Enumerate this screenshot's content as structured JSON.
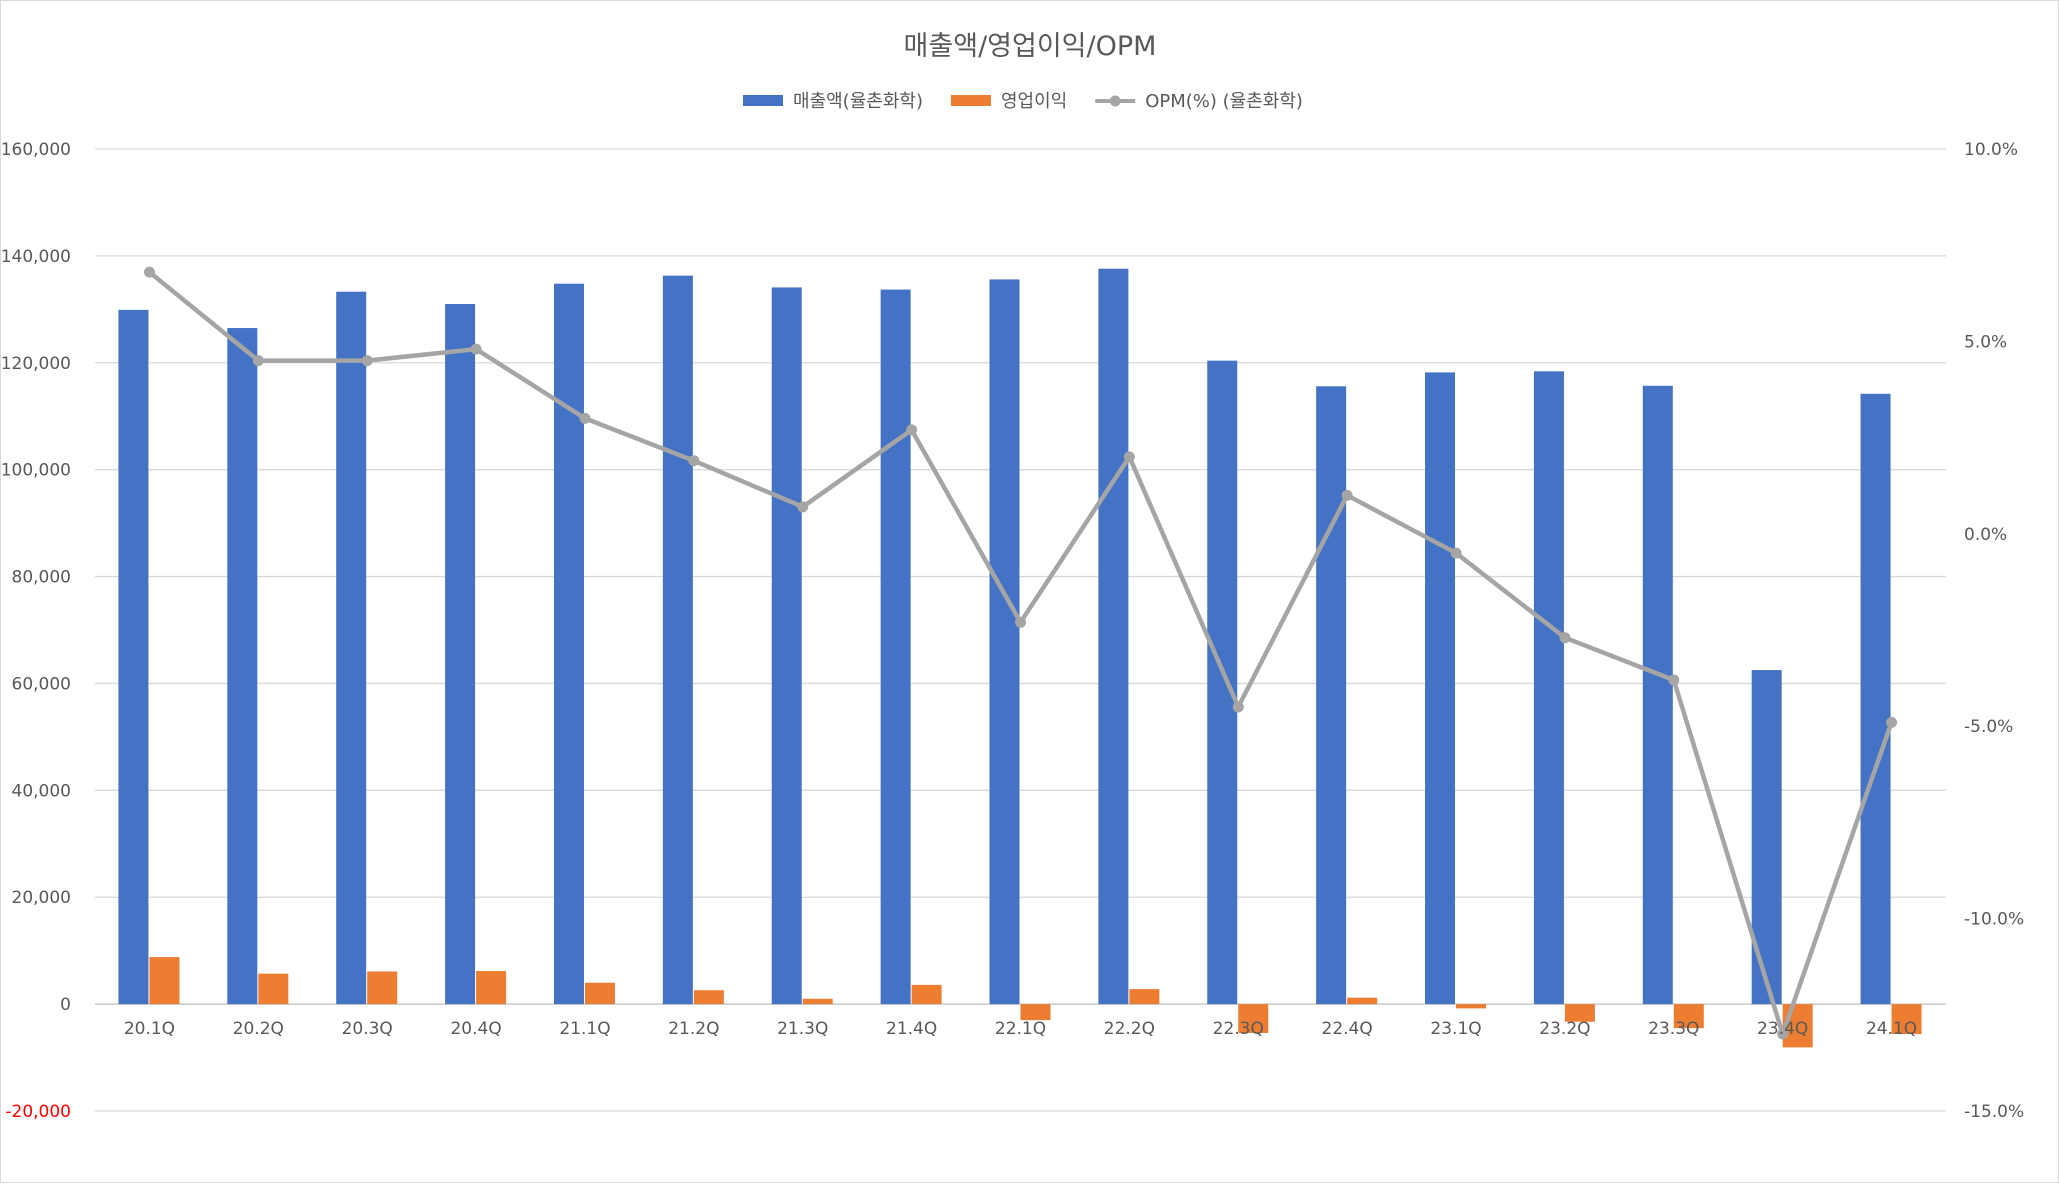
{
  "chart_data": {
    "type": "bar",
    "title": "매출액/영업이익/OPM",
    "categories": [
      "20.1Q",
      "20.2Q",
      "20.3Q",
      "20.4Q",
      "21.1Q",
      "21.2Q",
      "21.3Q",
      "21.4Q",
      "22.1Q",
      "22.2Q",
      "22.3Q",
      "22.4Q",
      "23.1Q",
      "23.2Q",
      "23.3Q",
      "23.4Q",
      "24.1Q"
    ],
    "series": [
      {
        "name": "매출액(율촌화학)",
        "type": "bar",
        "axis": "left",
        "color": "#4472c4",
        "values": [
          129900,
          126500,
          133300,
          131000,
          134800,
          136300,
          134100,
          133700,
          135600,
          137600,
          120400,
          115600,
          118200,
          118400,
          115700,
          62500,
          114200
        ]
      },
      {
        "name": "영업이익",
        "type": "bar",
        "axis": "left",
        "color": "#ed7d31",
        "values": [
          8800,
          5700,
          6100,
          6200,
          4000,
          2600,
          1000,
          3600,
          -3000,
          2800,
          -5400,
          1200,
          -800,
          -3300,
          -4500,
          -8100,
          -5600
        ]
      },
      {
        "name": "OPM(%) (율촌화학)",
        "type": "line",
        "axis": "right",
        "color": "#a5a5a5",
        "values": [
          6.8,
          4.5,
          4.5,
          4.8,
          3.0,
          1.9,
          0.7,
          2.7,
          -2.3,
          2.0,
          -4.5,
          1.0,
          -0.5,
          -2.7,
          -3.8,
          -13.0,
          -4.9
        ]
      }
    ],
    "y_left": {
      "min": -20000,
      "max": 160000,
      "step": 20000,
      "tick_labels": [
        "-20,000",
        "0",
        "20,000",
        "40,000",
        "60,000",
        "80,000",
        "100,000",
        "120,000",
        "140,000",
        "160,000"
      ]
    },
    "y_right": {
      "min": -15,
      "max": 10,
      "step": 5,
      "tick_labels": [
        "-15.0%",
        "-10.0%",
        "-5.0%",
        "0.0%",
        "5.0%",
        "10.0%"
      ]
    },
    "xlabel": "",
    "ylabel": "",
    "grid": true,
    "legend_position": "top"
  }
}
